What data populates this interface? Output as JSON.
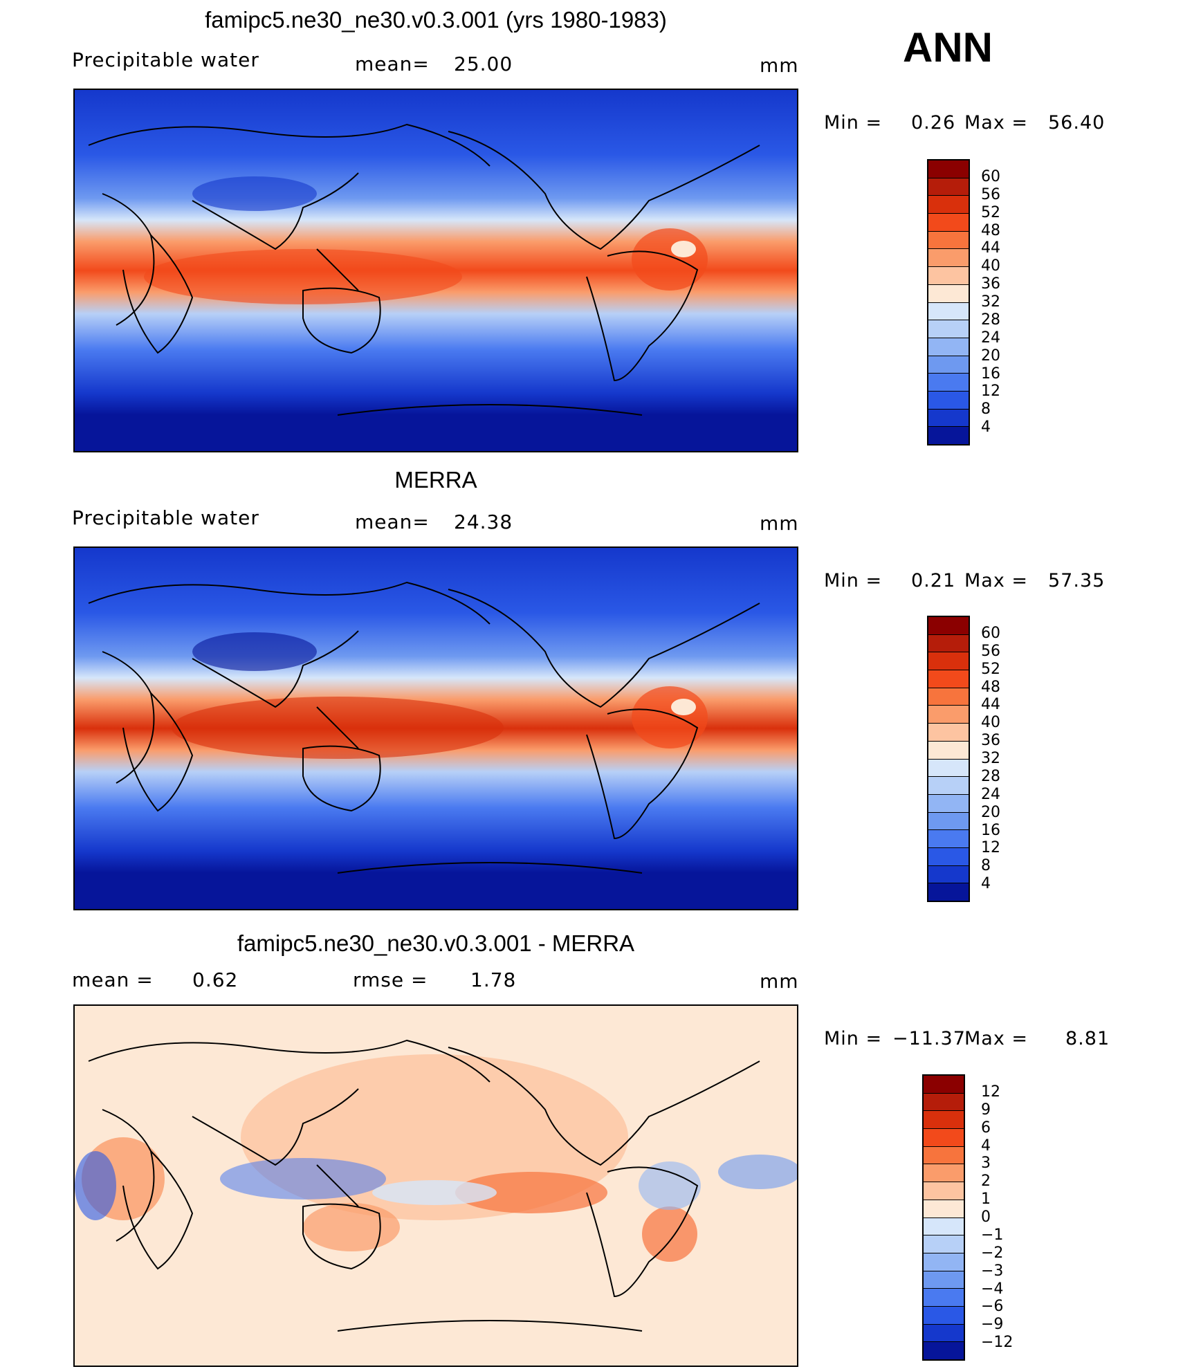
{
  "panel1": {
    "title": "famipc5.ne30_ne30.v0.3.001 (yrs 1980-1983)",
    "variable": "Precipitable  water",
    "mean_label": "mean=",
    "mean_value": "25.00",
    "units": "mm",
    "min_label": "Min  =",
    "min_value": "0.26",
    "max_label": "Max  =",
    "max_value": "56.40"
  },
  "season": "ANN",
  "panel2": {
    "title": "MERRA",
    "variable": "Precipitable  water",
    "mean_label": "mean=",
    "mean_value": "24.38",
    "units": "mm",
    "min_label": "Min  =",
    "min_value": "0.21",
    "max_label": "Max  =",
    "max_value": "57.35"
  },
  "panel3": {
    "title": "famipc5.ne30_ne30.v0.3.001 - MERRA",
    "mean_label": "mean  =",
    "mean_value": "0.62",
    "rmse_label": "rmse  =",
    "rmse_value": "1.78",
    "units": "mm",
    "min_label": "Min  =",
    "min_value": "−11.37",
    "max_label": "Max  =",
    "max_value": "8.81"
  },
  "colorbar_field": {
    "ticks": [
      "60",
      "56",
      "52",
      "48",
      "44",
      "40",
      "36",
      "32",
      "28",
      "24",
      "20",
      "16",
      "12",
      "8",
      "4"
    ],
    "colors": [
      "#8b0000",
      "#b51d0a",
      "#d9300c",
      "#f24a1b",
      "#f7743d",
      "#fa9c6b",
      "#fdc4a1",
      "#fde8d5",
      "#d6e6fa",
      "#b7d0f7",
      "#92b5f4",
      "#6e99f0",
      "#4a7af0",
      "#2a58e6",
      "#1538cc",
      "#06159a"
    ]
  },
  "colorbar_diff": {
    "ticks": [
      "12",
      "9",
      "6",
      "4",
      "3",
      "2",
      "1",
      "0",
      "−1",
      "−2",
      "−3",
      "−4",
      "−6",
      "−9",
      "−12"
    ],
    "colors": [
      "#8b0000",
      "#b51d0a",
      "#d9300c",
      "#f24a1b",
      "#f7743d",
      "#fa9c6b",
      "#fdc4a1",
      "#fde8d5",
      "#d6e6fa",
      "#b7d0f7",
      "#92b5f4",
      "#6e99f0",
      "#4a7af0",
      "#2a58e6",
      "#1538cc",
      "#06159a"
    ]
  }
}
